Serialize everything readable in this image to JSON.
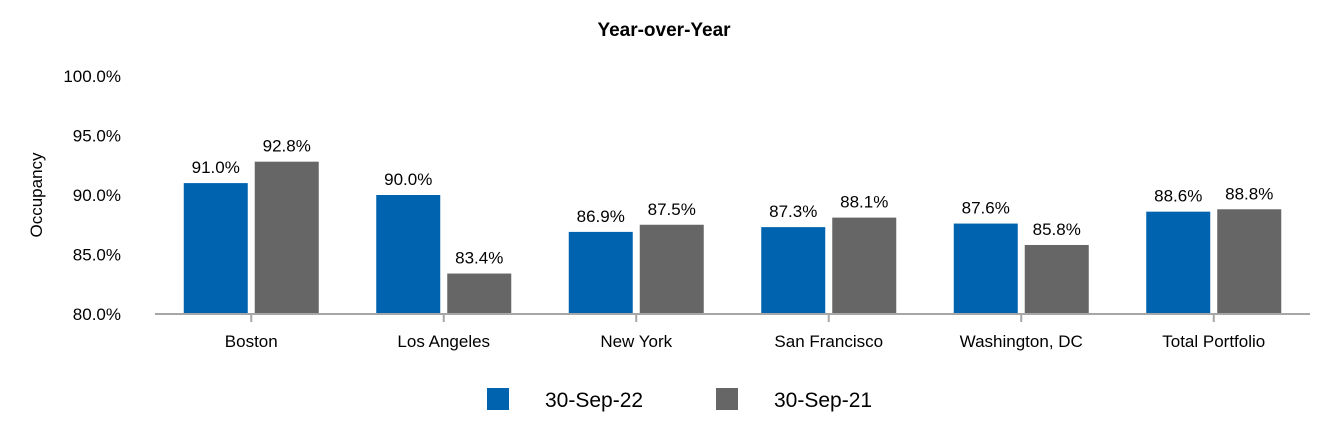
{
  "chart_data": {
    "type": "bar",
    "title": "Year-over-Year",
    "ylabel": "Occupancy",
    "xlabel": "",
    "categories": [
      "Boston",
      "Los Angeles",
      "New York",
      "San Francisco",
      "Washington, DC",
      "Total Portfolio"
    ],
    "series": [
      {
        "name": "30-Sep-22",
        "color": "#0063b0",
        "values": [
          91.0,
          90.0,
          86.9,
          87.3,
          87.6,
          88.6
        ],
        "labels": [
          "91.0%",
          "90.0%",
          "86.9%",
          "87.3%",
          "87.6%",
          "88.6%"
        ]
      },
      {
        "name": "30-Sep-21",
        "color": "#666666",
        "values": [
          92.8,
          83.4,
          87.5,
          88.1,
          85.8,
          88.8
        ],
        "labels": [
          "92.8%",
          "83.4%",
          "87.5%",
          "88.1%",
          "85.8%",
          "88.8%"
        ]
      }
    ],
    "ylim": [
      80,
      100
    ],
    "yticks": [
      80,
      85,
      90,
      95,
      100
    ],
    "ytick_labels": [
      "80.0%",
      "85.0%",
      "90.0%",
      "95.0%",
      "100.0%"
    ],
    "grid": false,
    "legend_position": "bottom-center"
  }
}
